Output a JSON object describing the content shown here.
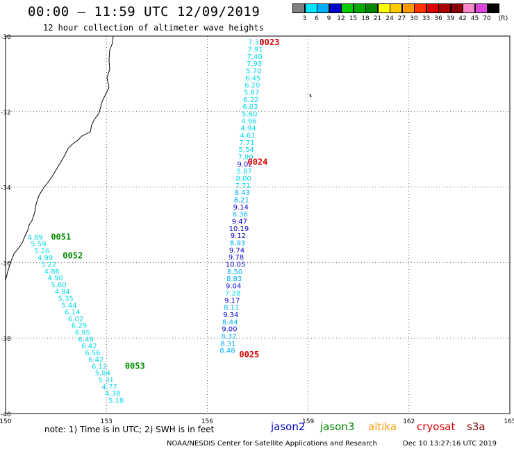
{
  "title": "00:00 – 11:59 UTC 12/09/2019",
  "subtitle": "12 hour collection of altimeter wave heights",
  "colorbar": {
    "unit": "(ft)",
    "labels": [
      "3",
      "6",
      "9",
      "12",
      "15",
      "18",
      "21",
      "24",
      "27",
      "30",
      "33",
      "36",
      "39",
      "42",
      "45",
      "70"
    ],
    "colors": [
      "#808080",
      "#00e5ff",
      "#00b0ff",
      "#0000cc",
      "#00cc00",
      "#00aa00",
      "#008800",
      "#ffff00",
      "#ffcc00",
      "#ff9900",
      "#ff3300",
      "#dd0000",
      "#aa0000",
      "#880000",
      "#ff88cc",
      "#dd44dd",
      "#000000"
    ]
  },
  "map": {
    "lon_ticks": [
      "150",
      "153",
      "156",
      "159",
      "162",
      "165"
    ],
    "lat_ticks": [
      "-30",
      "-32",
      "-34",
      "-36",
      "-38",
      "-40"
    ],
    "lon_range": [
      150,
      165
    ],
    "lat_range": [
      -40,
      -30
    ]
  },
  "tracks": [
    {
      "satellite": "jason3",
      "pass_labels": [
        {
          "text": "0051",
          "lon": 151.35,
          "lat": -35.3
        },
        {
          "text": "0052",
          "lon": 151.7,
          "lat": -35.8
        },
        {
          "text": "0053",
          "lon": 153.55,
          "lat": -38.72
        }
      ],
      "points": [
        {
          "lon": 150.88,
          "lat": -35.32,
          "value": "4.89",
          "color": "#00d8e8"
        },
        {
          "lon": 150.98,
          "lat": -35.5,
          "value": "5.59",
          "color": "#00d8e8"
        },
        {
          "lon": 151.08,
          "lat": -35.68,
          "value": "5.26",
          "color": "#00d8e8"
        },
        {
          "lon": 151.18,
          "lat": -35.86,
          "value": "4.99",
          "color": "#00d8e8"
        },
        {
          "lon": 151.28,
          "lat": -36.04,
          "value": "5.22",
          "color": "#00d8e8"
        },
        {
          "lon": 151.38,
          "lat": -36.22,
          "value": "4.86",
          "color": "#00d8e8"
        },
        {
          "lon": 151.48,
          "lat": -36.4,
          "value": "4.90",
          "color": "#00d8e8"
        },
        {
          "lon": 151.58,
          "lat": -36.58,
          "value": "5.60",
          "color": "#00d8e8"
        },
        {
          "lon": 151.69,
          "lat": -36.76,
          "value": "4.84",
          "color": "#00d8e8"
        },
        {
          "lon": 151.79,
          "lat": -36.94,
          "value": "5.35",
          "color": "#00d8e8"
        },
        {
          "lon": 151.89,
          "lat": -37.12,
          "value": "5.44",
          "color": "#00d8e8"
        },
        {
          "lon": 151.99,
          "lat": -37.3,
          "value": "6.14",
          "color": "#00d8e8"
        },
        {
          "lon": 152.09,
          "lat": -37.48,
          "value": "6.02",
          "color": "#00d8e8"
        },
        {
          "lon": 152.19,
          "lat": -37.66,
          "value": "6.29",
          "color": "#00d8e8"
        },
        {
          "lon": 152.29,
          "lat": -37.84,
          "value": "6.95",
          "color": "#00d8e8"
        },
        {
          "lon": 152.39,
          "lat": -38.02,
          "value": "6.49",
          "color": "#00d8e8"
        },
        {
          "lon": 152.49,
          "lat": -38.2,
          "value": "6.42",
          "color": "#00d8e8"
        },
        {
          "lon": 152.59,
          "lat": -38.38,
          "value": "6.56",
          "color": "#00d8e8"
        },
        {
          "lon": 152.69,
          "lat": -38.56,
          "value": "6.42",
          "color": "#00d8e8"
        },
        {
          "lon": 152.79,
          "lat": -38.74,
          "value": "6.12",
          "color": "#00d8e8"
        },
        {
          "lon": 152.89,
          "lat": -38.92,
          "value": "5.84",
          "color": "#00d8e8"
        },
        {
          "lon": 152.99,
          "lat": -39.1,
          "value": "5.31",
          "color": "#00d8e8"
        },
        {
          "lon": 153.09,
          "lat": -39.28,
          "value": "4.77",
          "color": "#00d8e8"
        },
        {
          "lon": 153.19,
          "lat": -39.46,
          "value": "4.38",
          "color": "#00d8e8"
        },
        {
          "lon": 153.29,
          "lat": -39.64,
          "value": "5.18",
          "color": "#00d8e8"
        }
      ]
    },
    {
      "satellite": "cryosat",
      "pass_labels": [
        {
          "text": "0023",
          "lon": 157.55,
          "lat": -30.15
        },
        {
          "text": "0024",
          "lon": 157.2,
          "lat": -33.32
        },
        {
          "text": "0025",
          "lon": 156.95,
          "lat": -38.42
        }
      ],
      "points": [
        {
          "lon": 157.44,
          "lat": -30.15,
          "value": "7.33",
          "color": "#00d8e8"
        },
        {
          "lon": 157.43,
          "lat": -30.34,
          "value": "7.91",
          "color": "#00d8e8"
        },
        {
          "lon": 157.41,
          "lat": -30.53,
          "value": "7.40",
          "color": "#00d8e8"
        },
        {
          "lon": 157.4,
          "lat": -30.72,
          "value": "7.93",
          "color": "#00d8e8"
        },
        {
          "lon": 157.38,
          "lat": -30.91,
          "value": "5.70",
          "color": "#00d8e8"
        },
        {
          "lon": 157.36,
          "lat": -31.1,
          "value": "6.45",
          "color": "#00d8e8"
        },
        {
          "lon": 157.34,
          "lat": -31.29,
          "value": "6.20",
          "color": "#00d8e8"
        },
        {
          "lon": 157.32,
          "lat": -31.48,
          "value": "5.67",
          "color": "#00d8e8"
        },
        {
          "lon": 157.3,
          "lat": -31.67,
          "value": "6.22",
          "color": "#00d8e8"
        },
        {
          "lon": 157.28,
          "lat": -31.86,
          "value": "6.03",
          "color": "#00d8e8"
        },
        {
          "lon": 157.26,
          "lat": -32.05,
          "value": "5.60",
          "color": "#00d8e8"
        },
        {
          "lon": 157.24,
          "lat": -32.24,
          "value": "4.96",
          "color": "#00d8e8"
        },
        {
          "lon": 157.22,
          "lat": -32.43,
          "value": "4.94",
          "color": "#00d8e8"
        },
        {
          "lon": 157.2,
          "lat": -32.62,
          "value": "4.61",
          "color": "#00d8e8"
        },
        {
          "lon": 157.18,
          "lat": -32.81,
          "value": "7.71",
          "color": "#00d8e8"
        },
        {
          "lon": 157.16,
          "lat": -33.0,
          "value": "5.54",
          "color": "#00d8e8"
        },
        {
          "lon": 157.14,
          "lat": -33.19,
          "value": "7.90",
          "color": "#00d8e8"
        },
        {
          "lon": 157.12,
          "lat": -33.38,
          "value": "9.02",
          "color": "#0000cc"
        },
        {
          "lon": 157.1,
          "lat": -33.57,
          "value": "5.87",
          "color": "#00d8e8"
        },
        {
          "lon": 157.08,
          "lat": -33.76,
          "value": "8.00",
          "color": "#00d8e8"
        },
        {
          "lon": 157.06,
          "lat": -33.95,
          "value": "7.71",
          "color": "#00d8e8"
        },
        {
          "lon": 157.04,
          "lat": -34.14,
          "value": "8.43",
          "color": "#00b0ff"
        },
        {
          "lon": 157.02,
          "lat": -34.33,
          "value": "8.21",
          "color": "#00b0ff"
        },
        {
          "lon": 157.0,
          "lat": -34.52,
          "value": "9.14",
          "color": "#0000cc"
        },
        {
          "lon": 156.98,
          "lat": -34.71,
          "value": "8.36",
          "color": "#00b0ff"
        },
        {
          "lon": 156.96,
          "lat": -34.9,
          "value": "9.47",
          "color": "#0000cc"
        },
        {
          "lon": 156.94,
          "lat": -35.09,
          "value": "10.19",
          "color": "#0000cc"
        },
        {
          "lon": 156.92,
          "lat": -35.28,
          "value": "9.12",
          "color": "#0000cc"
        },
        {
          "lon": 156.9,
          "lat": -35.47,
          "value": "8.93",
          "color": "#00b0ff"
        },
        {
          "lon": 156.88,
          "lat": -35.66,
          "value": "9.74",
          "color": "#0000cc"
        },
        {
          "lon": 156.86,
          "lat": -35.85,
          "value": "9.78",
          "color": "#0000cc"
        },
        {
          "lon": 156.84,
          "lat": -36.04,
          "value": "10.05",
          "color": "#0000cc"
        },
        {
          "lon": 156.82,
          "lat": -36.23,
          "value": "8.50",
          "color": "#00b0ff"
        },
        {
          "lon": 156.8,
          "lat": -36.42,
          "value": "8.83",
          "color": "#00b0ff"
        },
        {
          "lon": 156.78,
          "lat": -36.61,
          "value": "9.04",
          "color": "#0000cc"
        },
        {
          "lon": 156.76,
          "lat": -36.8,
          "value": "7.28",
          "color": "#00d8e8"
        },
        {
          "lon": 156.74,
          "lat": -36.99,
          "value": "9.17",
          "color": "#0000cc"
        },
        {
          "lon": 156.72,
          "lat": -37.18,
          "value": "8.11",
          "color": "#00b0ff"
        },
        {
          "lon": 156.7,
          "lat": -37.37,
          "value": "9.34",
          "color": "#0000cc"
        },
        {
          "lon": 156.68,
          "lat": -37.56,
          "value": "8.44",
          "color": "#00b0ff"
        },
        {
          "lon": 156.66,
          "lat": -37.75,
          "value": "9.00",
          "color": "#0000cc"
        },
        {
          "lon": 156.64,
          "lat": -37.94,
          "value": "8.32",
          "color": "#00b0ff"
        },
        {
          "lon": 156.62,
          "lat": -38.13,
          "value": "8.31",
          "color": "#00b0ff"
        },
        {
          "lon": 156.6,
          "lat": -38.32,
          "value": "8.48",
          "color": "#00b0ff"
        }
      ]
    }
  ],
  "note": "note: 1) Time is in UTC; 2) SWH is in feet",
  "legend": [
    {
      "label": "jason2",
      "color": "#0000cc"
    },
    {
      "label": "jason3",
      "color": "#008800"
    },
    {
      "label": "altika",
      "color": "#ff9900"
    },
    {
      "label": "cryosat",
      "color": "#dd0000"
    },
    {
      "label": "s3a",
      "color": "#880000"
    }
  ],
  "credit": "NOAA/NESDIS Center for Satellite Applications and Research",
  "timestamp": "Dec 10 13:27:16 UTC 2019"
}
